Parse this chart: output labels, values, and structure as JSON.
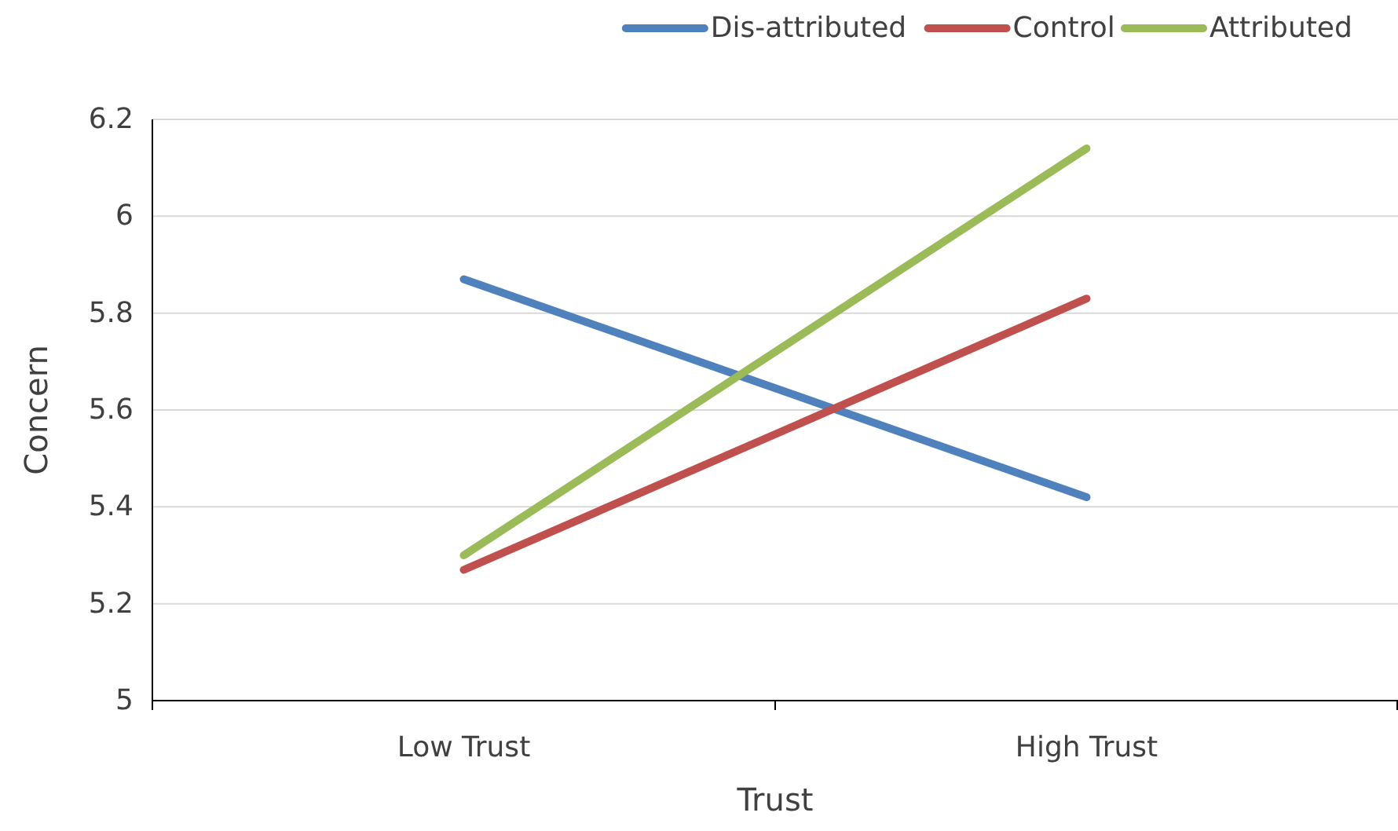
{
  "chart_data": {
    "type": "line",
    "xlabel": "Trust",
    "ylabel": "Concern",
    "categories": [
      "Low Trust",
      "High Trust"
    ],
    "series": [
      {
        "name": "Dis-attributed",
        "color": "#4f81bd",
        "values": [
          5.87,
          5.42
        ]
      },
      {
        "name": "Control",
        "color": "#c0504d",
        "values": [
          5.27,
          5.83
        ]
      },
      {
        "name": "Attributed",
        "color": "#9bbb59",
        "values": [
          5.3,
          6.14
        ]
      }
    ],
    "ylim": [
      5,
      6.2
    ],
    "yticks": [
      {
        "value": 5,
        "label": "5"
      },
      {
        "value": 5.2,
        "label": "5.2"
      },
      {
        "value": 5.4,
        "label": "5.4"
      },
      {
        "value": 5.6,
        "label": "5.6"
      },
      {
        "value": 5.8,
        "label": "5.8"
      },
      {
        "value": 6,
        "label": "6"
      },
      {
        "value": 6.2,
        "label": "6.2"
      }
    ],
    "grid": "y",
    "legend": "top right",
    "marker": "none",
    "line_style": "solid"
  }
}
